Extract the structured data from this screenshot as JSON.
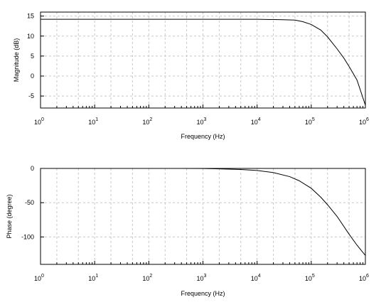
{
  "chart_data": [
    {
      "type": "line",
      "xlabel": "Frequency (Hz)",
      "ylabel": "Magnitude (dB)",
      "xscale": "log",
      "xlim": [
        1,
        1000000
      ],
      "ylim": [
        -8,
        16
      ],
      "yticks": [
        -5,
        0,
        5,
        10,
        15
      ],
      "xticks": [
        {
          "base": "10",
          "exp": "0"
        },
        {
          "base": "10",
          "exp": "1"
        },
        {
          "base": "10",
          "exp": "2"
        },
        {
          "base": "10",
          "exp": "3"
        },
        {
          "base": "10",
          "exp": "4"
        },
        {
          "base": "10",
          "exp": "5"
        },
        {
          "base": "10",
          "exp": "6"
        }
      ],
      "grid": true,
      "series": [
        {
          "x": [
            1,
            10,
            100,
            1000,
            10000,
            30000,
            50000,
            70000,
            100000,
            150000,
            200000,
            300000,
            400000,
            500000,
            700000,
            1000000
          ],
          "values": [
            14.2,
            14.2,
            14.2,
            14.2,
            14.2,
            14.1,
            14.0,
            13.6,
            12.9,
            11.5,
            9.8,
            6.8,
            4.5,
            2.4,
            -1.0,
            -7.3
          ]
        }
      ]
    },
    {
      "type": "line",
      "xlabel": "Frequency (Hz)",
      "ylabel": "Phase (degree)",
      "xscale": "log",
      "xlim": [
        1,
        1000000
      ],
      "ylim": [
        -140,
        0
      ],
      "yticks": [
        -100,
        -50,
        0
      ],
      "xticks": [
        {
          "base": "10",
          "exp": "0"
        },
        {
          "base": "10",
          "exp": "1"
        },
        {
          "base": "10",
          "exp": "2"
        },
        {
          "base": "10",
          "exp": "3"
        },
        {
          "base": "10",
          "exp": "4"
        },
        {
          "base": "10",
          "exp": "5"
        },
        {
          "base": "10",
          "exp": "6"
        }
      ],
      "grid": true,
      "series": [
        {
          "x": [
            1,
            10,
            100,
            1000,
            2000,
            5000,
            10000,
            20000,
            40000,
            60000,
            100000,
            150000,
            200000,
            300000,
            500000,
            700000,
            1000000
          ],
          "values": [
            0,
            0,
            0,
            -0.1,
            -0.6,
            -1.5,
            -3.0,
            -6.1,
            -12.0,
            -18.0,
            -29.0,
            -42.0,
            -53.0,
            -70.0,
            -96.0,
            -112.0,
            -127.0
          ]
        }
      ]
    }
  ]
}
